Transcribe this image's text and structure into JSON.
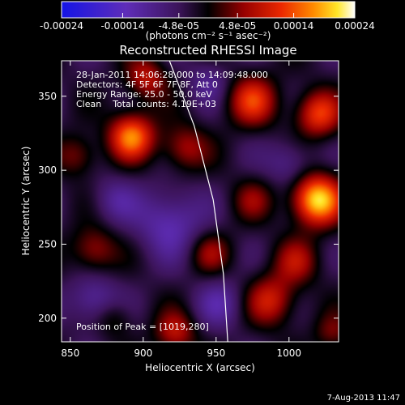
{
  "chart_data": {
    "type": "heatmap",
    "title": "Reconstructed RHESSI Image",
    "xlabel": "Heliocentric X (arcsec)",
    "ylabel": "Heliocentric Y (arcsec)",
    "xlim": [
      844,
      1034
    ],
    "ylim": [
      184,
      374
    ],
    "x_ticks": [
      850,
      900,
      950,
      1000
    ],
    "y_ticks": [
      200,
      250,
      300,
      350
    ],
    "colorbar": {
      "range": [
        -0.00024,
        0.00024
      ],
      "ticks": [
        -0.00024,
        -0.00014,
        -4.8e-05,
        4.8e-05,
        0.00014,
        0.00024
      ],
      "tick_labels": [
        "-0.00024",
        "-0.00014",
        "-4.8e-05",
        "4.8e-05",
        "0.00014",
        "0.00024"
      ],
      "units": "(photons cm⁻² s⁻¹ asec⁻²)"
    },
    "annotations": [
      "28-Jan-2011 14:06:28.000 to 14:09:48.000",
      "Detectors: 4F 5F 6F 7F 8F, Att 0",
      "Energy Range: 25.0 - 50.0 keV",
      "Clean    Total counts: 4.19E+03"
    ],
    "peak_label": "Position of Peak = [1019,280]",
    "peak_position": [
      1019,
      280
    ],
    "limb_curve": [
      [
        918,
        374
      ],
      [
        935,
        330
      ],
      [
        948,
        280
      ],
      [
        955,
        230
      ],
      [
        958,
        184
      ]
    ],
    "sources": [
      {
        "x": 1019,
        "y": 280,
        "amplitude": 0.00024,
        "sigma": 12
      },
      {
        "x": 892,
        "y": 323,
        "amplitude": 0.00019,
        "sigma": 11
      },
      {
        "x": 975,
        "y": 347,
        "amplitude": 0.00014,
        "sigma": 12
      },
      {
        "x": 1020,
        "y": 338,
        "amplitude": 0.00015,
        "sigma": 11
      },
      {
        "x": 928,
        "y": 315,
        "amplitude": 0.0001,
        "sigma": 11
      },
      {
        "x": 902,
        "y": 362,
        "amplitude": 0.00011,
        "sigma": 10
      },
      {
        "x": 855,
        "y": 310,
        "amplitude": 8e-05,
        "sigma": 10
      },
      {
        "x": 866,
        "y": 246,
        "amplitude": 0.0001,
        "sigma": 11
      },
      {
        "x": 946,
        "y": 244,
        "amplitude": 8e-05,
        "sigma": 10
      },
      {
        "x": 988,
        "y": 212,
        "amplitude": 0.00012,
        "sigma": 12
      },
      {
        "x": 1005,
        "y": 238,
        "amplitude": 9e-05,
        "sigma": 11
      },
      {
        "x": 922,
        "y": 190,
        "amplitude": 0.00011,
        "sigma": 10
      },
      {
        "x": 975,
        "y": 280,
        "amplitude": 7e-05,
        "sigma": 10
      },
      {
        "x": 1030,
        "y": 190,
        "amplitude": 7e-05,
        "sigma": 9
      },
      {
        "x": 880,
        "y": 200,
        "amplitude": 6e-05,
        "sigma": 9
      },
      {
        "x": 918,
        "y": 265,
        "amplitude": -0.0001,
        "sigma": 16
      },
      {
        "x": 866,
        "y": 212,
        "amplitude": -9e-05,
        "sigma": 12
      },
      {
        "x": 953,
        "y": 210,
        "amplitude": -7e-05,
        "sigma": 12
      },
      {
        "x": 1000,
        "y": 305,
        "amplitude": -7e-05,
        "sigma": 11
      },
      {
        "x": 945,
        "y": 360,
        "amplitude": -6e-05,
        "sigma": 10
      },
      {
        "x": 880,
        "y": 280,
        "amplitude": -6e-05,
        "sigma": 11
      }
    ]
  },
  "footer": {
    "date": "7-Aug-2013 11:47"
  }
}
